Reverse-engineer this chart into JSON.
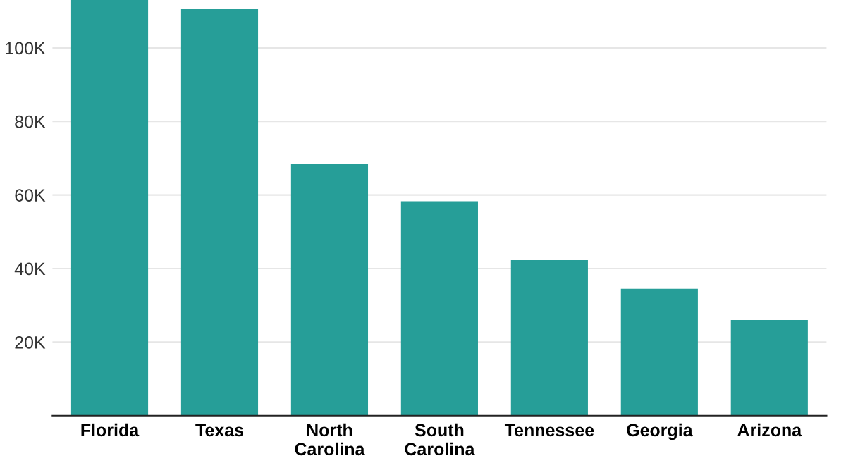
{
  "chart_data": {
    "type": "bar",
    "categories": [
      "Florida",
      "Texas",
      "North\nCarolina",
      "South\nCarolina",
      "Tennessee",
      "Georgia",
      "Arizona"
    ],
    "values": [
      113,
      110.5,
      68.5,
      58.3,
      42.3,
      34.5,
      26
    ],
    "color": "#269e98",
    "ylim": [
      0,
      113
    ],
    "yticks": [
      {
        "value": 20,
        "label": "20K"
      },
      {
        "value": 40,
        "label": "40K"
      },
      {
        "value": 60,
        "label": "60K"
      },
      {
        "value": 80,
        "label": "80K"
      },
      {
        "value": 100,
        "label": "100K"
      }
    ],
    "grid": "y"
  }
}
